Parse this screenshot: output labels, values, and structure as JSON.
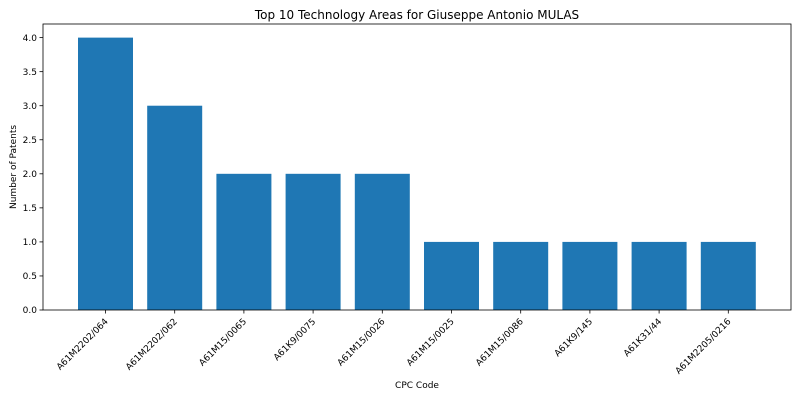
{
  "chart_data": {
    "type": "bar",
    "title": "Top 10 Technology Areas for Giuseppe Antonio MULAS",
    "xlabel": "CPC Code",
    "ylabel": "Number of Patents",
    "categories": [
      "A61M2202/064",
      "A61M2202/062",
      "A61M15/0065",
      "A61K9/0075",
      "A61M15/0026",
      "A61M15/0025",
      "A61M15/0086",
      "A61K9/145",
      "A61K31/44",
      "A61M2205/0216"
    ],
    "values": [
      4,
      3,
      2,
      2,
      2,
      1,
      1,
      1,
      1,
      1
    ],
    "ylim": [
      0,
      4.2
    ],
    "yticks": [
      "0.0",
      "0.5",
      "1.0",
      "1.5",
      "2.0",
      "2.5",
      "3.0",
      "3.5",
      "4.0"
    ],
    "grid": false,
    "bar_color": "#1f77b4"
  }
}
